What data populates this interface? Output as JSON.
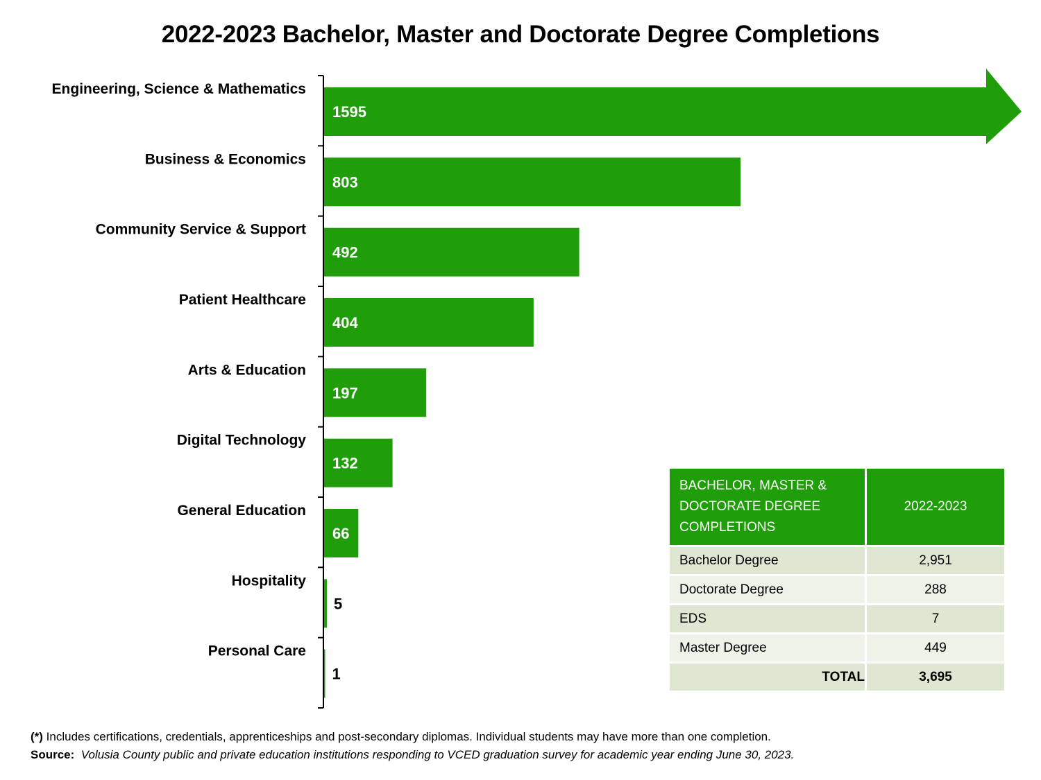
{
  "chart_data": {
    "type": "bar",
    "orientation": "horizontal",
    "title": "2022-2023 Bachelor, Master and Doctorate Degree Completions",
    "categories": [
      "Engineering, Science & Mathematics",
      "Business & Economics",
      "Community Service & Support",
      "Patient Healthcare",
      "Arts & Education",
      "Digital Technology",
      "General Education",
      "Hospitality",
      "Personal Care"
    ],
    "values": [
      1595,
      803,
      492,
      404,
      197,
      132,
      66,
      5,
      1
    ],
    "value_labels": [
      "1595",
      "803",
      "492",
      "404",
      "197",
      "132",
      "66",
      "5",
      "1"
    ],
    "first_bar_shape": "arrow (truncated)",
    "bar_color": "#1f9e0a",
    "grid": false,
    "value_axis_visible": false
  },
  "table": {
    "header_label": "BACHELOR, MASTER & DOCTORATE DEGREE COMPLETIONS",
    "header_year": "2022-2023",
    "rows": [
      {
        "label": "Bachelor Degree",
        "value": "2,951"
      },
      {
        "label": "Doctorate Degree",
        "value": "288"
      },
      {
        "label": "EDS",
        "value": "7"
      },
      {
        "label": "Master Degree",
        "value": "449"
      }
    ],
    "total_label": "TOTAL",
    "total_value": "3,695"
  },
  "footnote": {
    "mark": "(*)",
    "note": " Includes certifications, credentials, apprenticeships and post-secondary diplomas. Individual students may have more than one completion.",
    "source_label": "Source:",
    "source_text": "Volusia County public and private education institutions responding to VCED graduation survey for academic year ending June 30, 2023."
  },
  "colors": {
    "bar": "#1f9e0a",
    "header_bg": "#1f9e0a",
    "row_dark": "#dfe7d2",
    "row_light": "#eef2e8"
  }
}
